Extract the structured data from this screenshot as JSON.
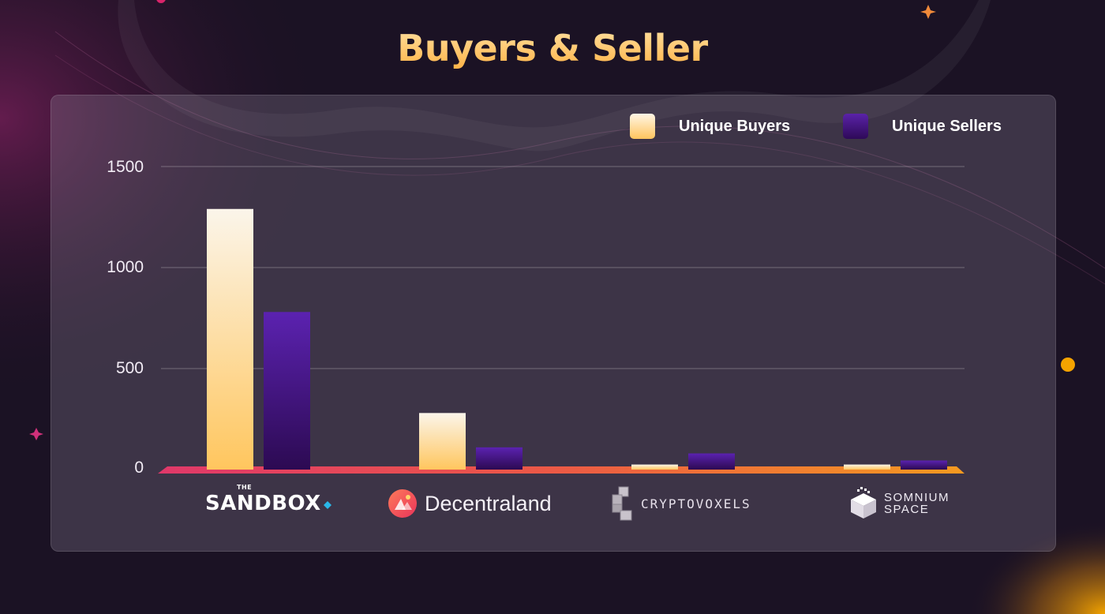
{
  "title": "Buyers & Seller",
  "legend": [
    {
      "label": "Unique Buyers",
      "color": "#ffcb6b"
    },
    {
      "label": "Unique Sellers",
      "color": "#4a1a8a"
    }
  ],
  "y_ticks": [
    "1500",
    "1000",
    "500",
    "0"
  ],
  "categories": {
    "sandbox": {
      "the": "THE",
      "name": "SANDBOX"
    },
    "decentraland": {
      "name": "Decentraland"
    },
    "cryptovoxels": {
      "name": "CRYPTOVOXELS"
    },
    "somnium": {
      "line1": "SOMNIUM",
      "line2": "SPACE"
    }
  },
  "chart_data": {
    "type": "bar",
    "title": "Buyers & Seller",
    "categories": [
      "The Sandbox",
      "Decentraland",
      "Cryptovoxels",
      "Somnium Space"
    ],
    "series": [
      {
        "name": "Unique Buyers",
        "values": [
          1290,
          280,
          25,
          25
        ]
      },
      {
        "name": "Unique Sellers",
        "values": [
          780,
          110,
          80,
          45
        ]
      }
    ],
    "ylim": [
      0,
      1500
    ],
    "yticks": [
      0,
      500,
      1000,
      1500
    ],
    "grid": true,
    "legend": "top-right"
  }
}
